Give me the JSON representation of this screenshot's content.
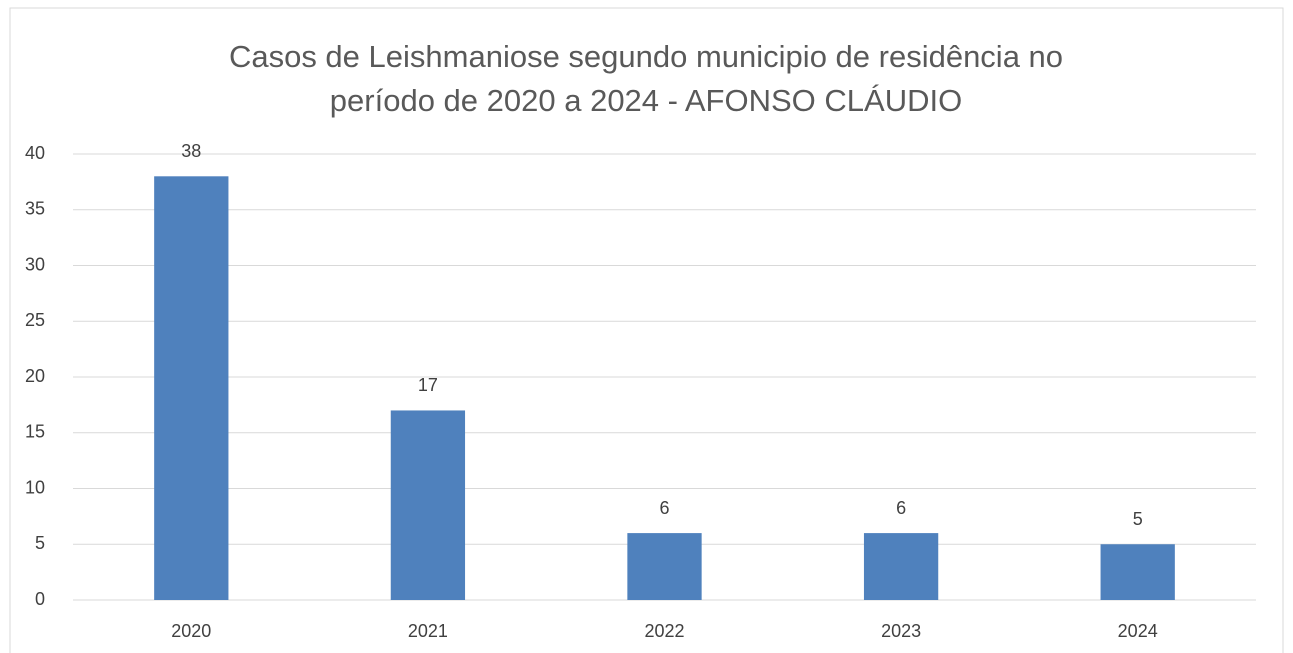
{
  "chart_data": {
    "type": "bar",
    "title": "Casos de Leishmaniose segundo municipio de residência no período de 2020 a 2024 - AFONSO CLÁUDIO",
    "categories": [
      "2020",
      "2021",
      "2022",
      "2023",
      "2024"
    ],
    "values": [
      38,
      17,
      6,
      6,
      5
    ],
    "color": "#4f81bd",
    "ylim": [
      0,
      40
    ],
    "yticks": [
      0,
      5,
      10,
      15,
      20,
      25,
      30,
      35,
      40
    ],
    "grid": true
  }
}
